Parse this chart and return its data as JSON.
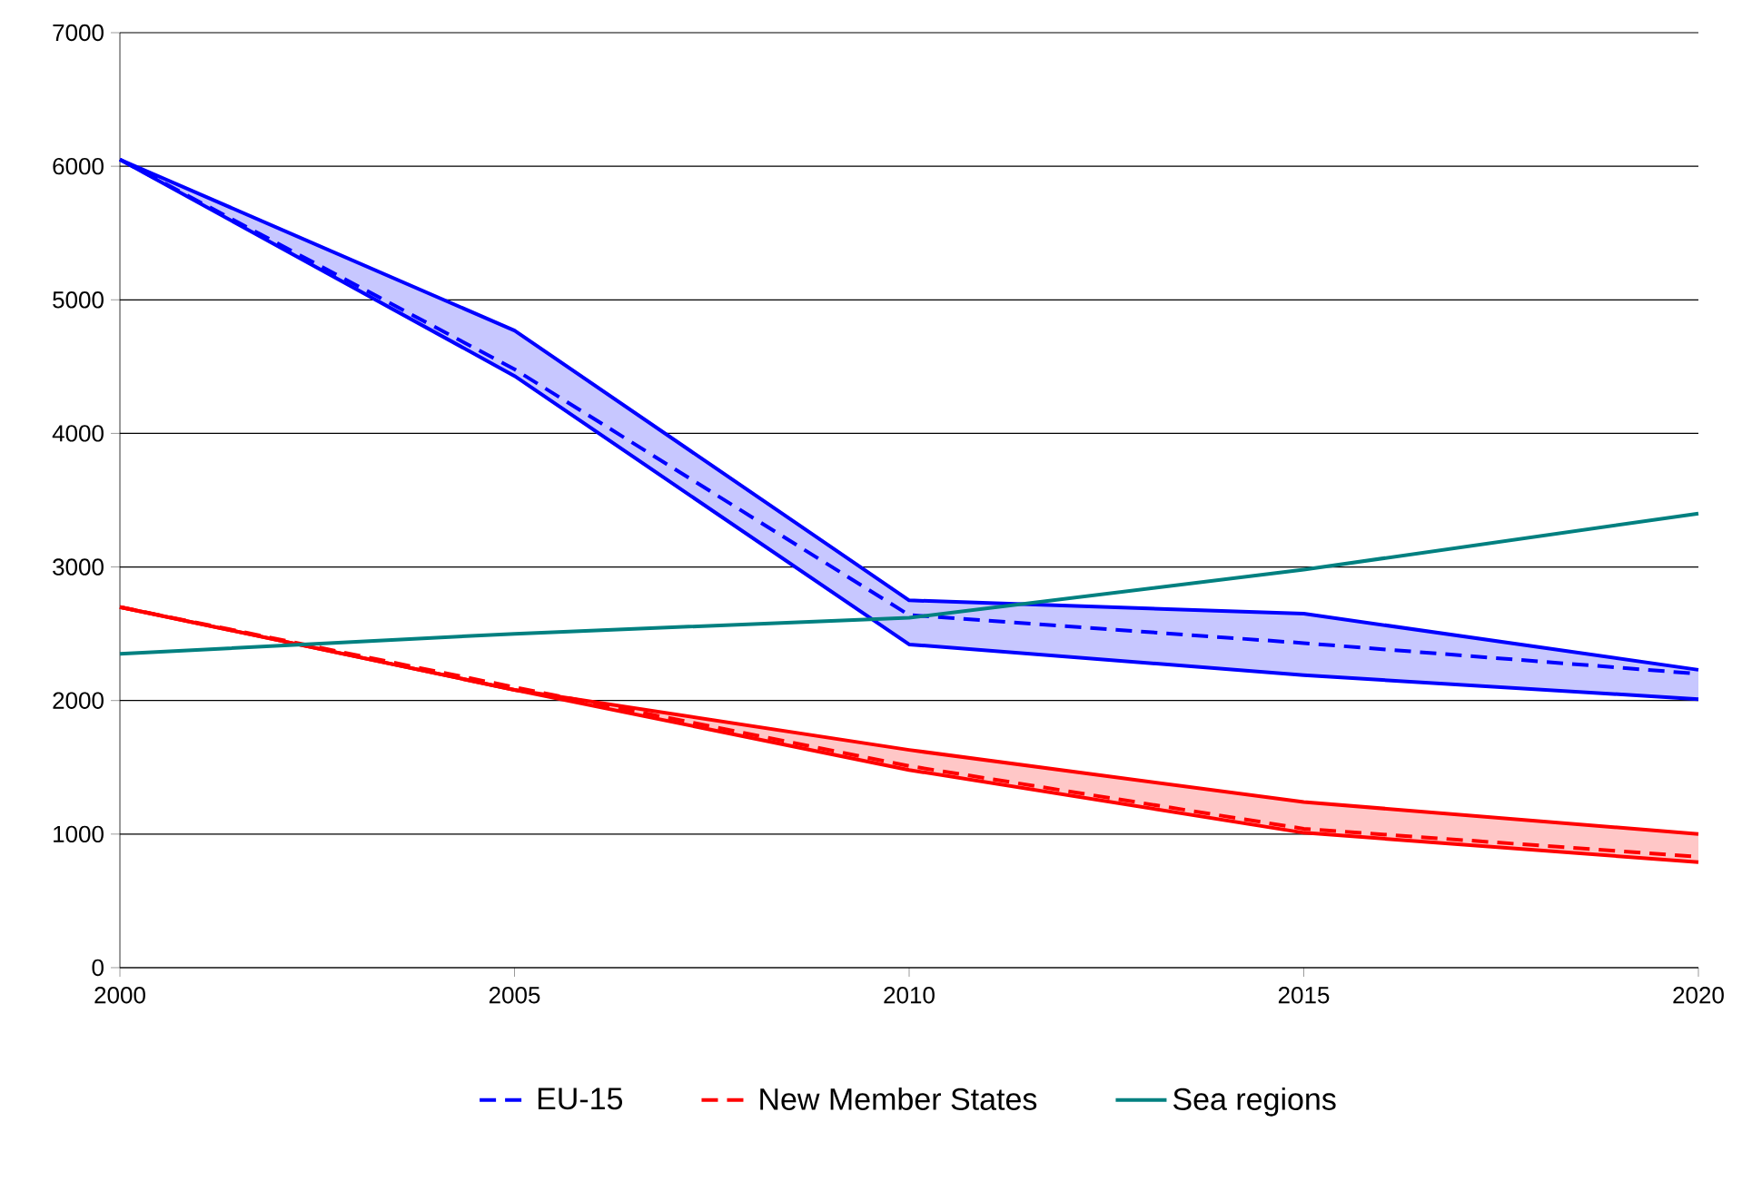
{
  "chart_data": {
    "type": "line",
    "x": [
      2000,
      2005,
      2010,
      2015,
      2020
    ],
    "series": [
      {
        "name": "EU-15",
        "color": "#0000ff",
        "line_style": "dashed",
        "values": [
          6050,
          4480,
          2640,
          2430,
          2200
        ],
        "lower": [
          6050,
          4430,
          2420,
          2190,
          2010
        ],
        "upper": [
          6050,
          4770,
          2750,
          2650,
          2230
        ]
      },
      {
        "color": "#0000ff",
        "line_style": "solid",
        "values": [
          6050,
          4770,
          2750,
          2650,
          2230
        ]
      },
      {
        "color": "#0000ff",
        "line_style": "solid",
        "values": [
          6050,
          4430,
          2420,
          2190,
          2010
        ]
      },
      {
        "name": "New Member States",
        "color": "#ff0000",
        "line_style": "dashed",
        "values": [
          2700,
          2100,
          1510,
          1040,
          830
        ],
        "lower": [
          2700,
          2080,
          1480,
          1010,
          790
        ],
        "upper": [
          2700,
          2080,
          1630,
          1240,
          1000
        ]
      },
      {
        "color": "#ff0000",
        "line_style": "solid",
        "values": [
          2700,
          2080,
          1630,
          1240,
          1000
        ]
      },
      {
        "color": "#ff0000",
        "line_style": "solid",
        "values": [
          2700,
          2080,
          1480,
          1010,
          790
        ]
      },
      {
        "name": "Sea regions",
        "color": "#008080",
        "line_style": "solid",
        "values": [
          2350,
          2500,
          2620,
          2980,
          3400
        ]
      }
    ],
    "xlim": [
      2000,
      2020
    ],
    "xticks": [
      2000,
      2005,
      2010,
      2015,
      2020
    ],
    "ylim": [
      0,
      7000
    ],
    "yticks": [
      0,
      1000,
      2000,
      3000,
      4000,
      5000,
      6000,
      7000
    ],
    "grid": "y",
    "legend": "bottom",
    "marker": "none"
  }
}
